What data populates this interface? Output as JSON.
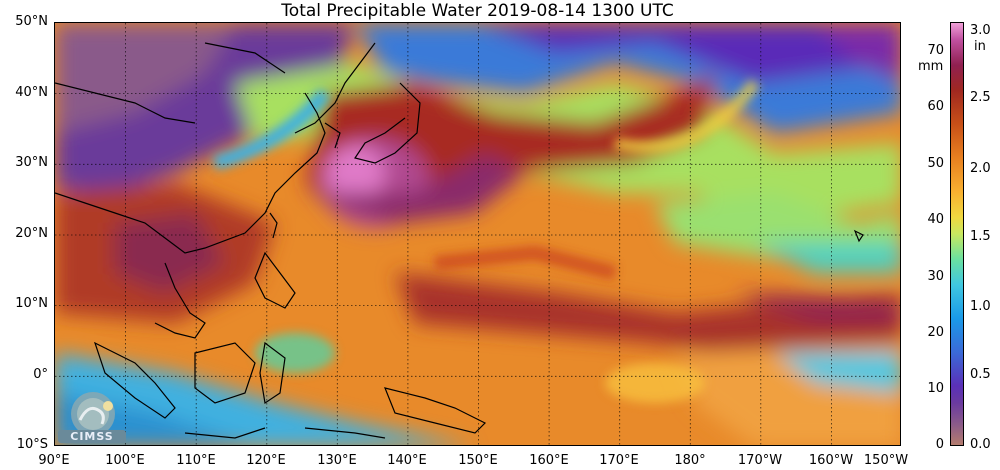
{
  "title": "Total Precipitable Water  2019-08-14 1300 UTC",
  "map": {
    "lat_labels": [
      "50°N",
      "40°N",
      "30°N",
      "20°N",
      "10°N",
      "0°",
      "10°S"
    ],
    "lon_labels": [
      "90°E",
      "100°E",
      "110°E",
      "120°E",
      "130°E",
      "140°E",
      "150°E",
      "160°E",
      "170°E",
      "180°",
      "170°W",
      "160°W",
      "150°W"
    ],
    "lat_range": [
      -10,
      50
    ],
    "lon_range": [
      90,
      210
    ],
    "gridlines": "dotted"
  },
  "colorbar": {
    "mm_ticks": [
      "70",
      "60",
      "50",
      "40",
      "30",
      "20",
      "10",
      "0"
    ],
    "mm_unit": "mm",
    "in_ticks": [
      "3.0",
      "2.5",
      "2.0",
      "1.5",
      "1.0",
      "0.5",
      "0.0"
    ],
    "in_unit": "in",
    "colors": [
      "#b47c6e",
      "#6a3aa0",
      "#1a9ae8",
      "#6ae0a0",
      "#f0d840",
      "#e88020",
      "#a02820",
      "#c050a0",
      "#f0a0d8"
    ]
  },
  "logo": {
    "text": "CIMSS"
  }
}
